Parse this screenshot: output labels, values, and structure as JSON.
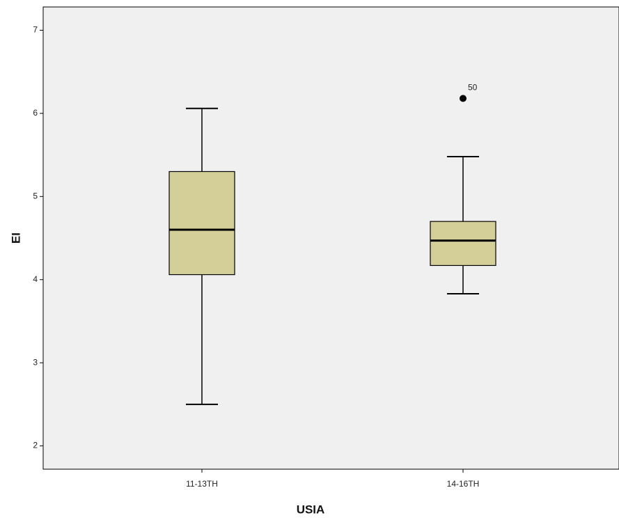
{
  "chart_data": {
    "type": "box",
    "x_label": "USIA",
    "y_label": "EI",
    "categories": [
      "11-13TH",
      "14-16TH"
    ],
    "whisker_low": [
      2.5,
      3.83
    ],
    "q1": [
      4.06,
      4.17
    ],
    "median": [
      4.6,
      4.47
    ],
    "q3": [
      5.3,
      4.7
    ],
    "whisker_high": [
      6.06,
      5.48
    ],
    "outliers": [
      [],
      [
        {
          "value": 6.18,
          "label": "50"
        }
      ]
    ],
    "color": "#d4cf98",
    "ylim": [
      1.72,
      7.28
    ],
    "yticks": [
      2,
      3,
      4,
      5,
      6,
      7
    ]
  }
}
